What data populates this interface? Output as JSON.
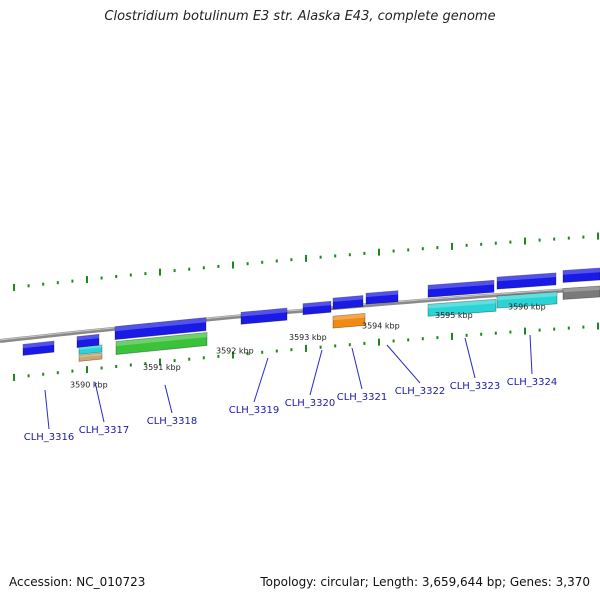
{
  "title": "Clostridium botulinum E3 str. Alaska E43, complete genome",
  "footer": {
    "accession": "Accession: NC_010723",
    "topology": "Topology: circular; Length: 3,659,644 bp; Genes: 3,370"
  },
  "colors": {
    "backbone": "#8a8a8a",
    "tick": "#1a8a1a",
    "label_line": "#2a2acc",
    "gene_blue": "#1a1ae6",
    "gene_cyan": "#2ad4d4",
    "gene_green": "#3ac23a",
    "gene_orange": "#f08a10",
    "gene_tan": "#c8a870",
    "gene_gray": "#7a7a7a"
  },
  "scale_labels": [
    {
      "text": "3590 kbp",
      "kbp": 3590
    },
    {
      "text": "3591 kbp",
      "kbp": 3591
    },
    {
      "text": "3592 kbp",
      "kbp": 3592
    },
    {
      "text": "3593 kbp",
      "kbp": 3593
    },
    {
      "text": "3594 kbp",
      "kbp": 3594
    },
    {
      "text": "3595 kbp",
      "kbp": 3595
    },
    {
      "text": "3596 kbp",
      "kbp": 3596
    }
  ],
  "gene_labels": [
    "CLH_3316",
    "CLH_3317",
    "CLH_3318",
    "CLH_3319",
    "CLH_3320",
    "CLH_3321",
    "CLH_3322",
    "CLH_3323",
    "CLH_3324"
  ]
}
